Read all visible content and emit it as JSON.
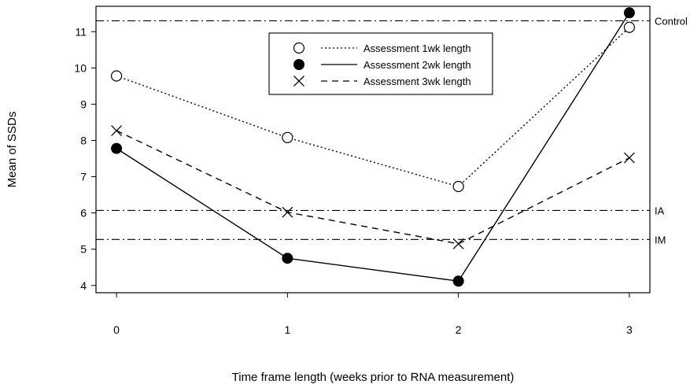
{
  "chart_data": {
    "type": "line",
    "xlabel": "Time frame length (weeks prior to RNA measurement)",
    "ylabel": "Mean of SSDs",
    "x": [
      0,
      1,
      2,
      3
    ],
    "x_ticks": [
      "0",
      "1",
      "2",
      "3"
    ],
    "y_ticks": [
      "4",
      "5",
      "6",
      "7",
      "8",
      "9",
      "10",
      "11"
    ],
    "xlim": [
      -0.12,
      3.12
    ],
    "ylim": [
      3.8,
      11.7
    ],
    "grid": false,
    "legend_position": "top-center",
    "series": [
      {
        "name": "Assessment 1wk length",
        "values": [
          9.78,
          8.08,
          6.73,
          11.12
        ],
        "marker": "open-circle",
        "line": "dotted"
      },
      {
        "name": "Assessment 2wk length",
        "values": [
          7.78,
          4.75,
          4.12,
          11.52
        ],
        "marker": "filled-circle",
        "line": "solid"
      },
      {
        "name": "Assessment 3wk length",
        "values": [
          8.27,
          6.02,
          5.15,
          7.52
        ],
        "marker": "cross",
        "line": "dashed"
      }
    ],
    "reference_lines": [
      {
        "label": "Control",
        "value": 11.3
      },
      {
        "label": "IA",
        "value": 6.07
      },
      {
        "label": "IM",
        "value": 5.27
      }
    ]
  }
}
